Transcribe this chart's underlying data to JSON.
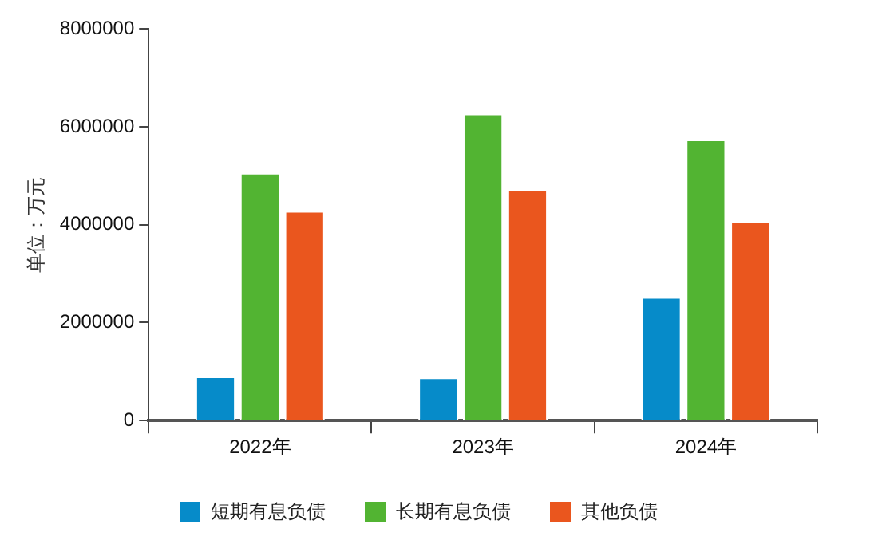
{
  "chart_data": {
    "type": "bar",
    "ylabel": "单位：万元",
    "categories": [
      "2022年",
      "2023年",
      "2024年"
    ],
    "series": [
      {
        "name": "短期有息负债",
        "color": "#068bc9",
        "values": [
          900000,
          880000,
          2520000
        ]
      },
      {
        "name": "长期有息负债",
        "color": "#52b432",
        "values": [
          5060000,
          6270000,
          5740000
        ]
      },
      {
        "name": "其他负债",
        "color": "#ea561e",
        "values": [
          4280000,
          4730000,
          4060000
        ]
      }
    ],
    "ylim": [
      0,
      8000000
    ],
    "yticks": [
      0,
      2000000,
      4000000,
      6000000,
      8000000
    ],
    "grid": false,
    "legend": "bottom"
  }
}
